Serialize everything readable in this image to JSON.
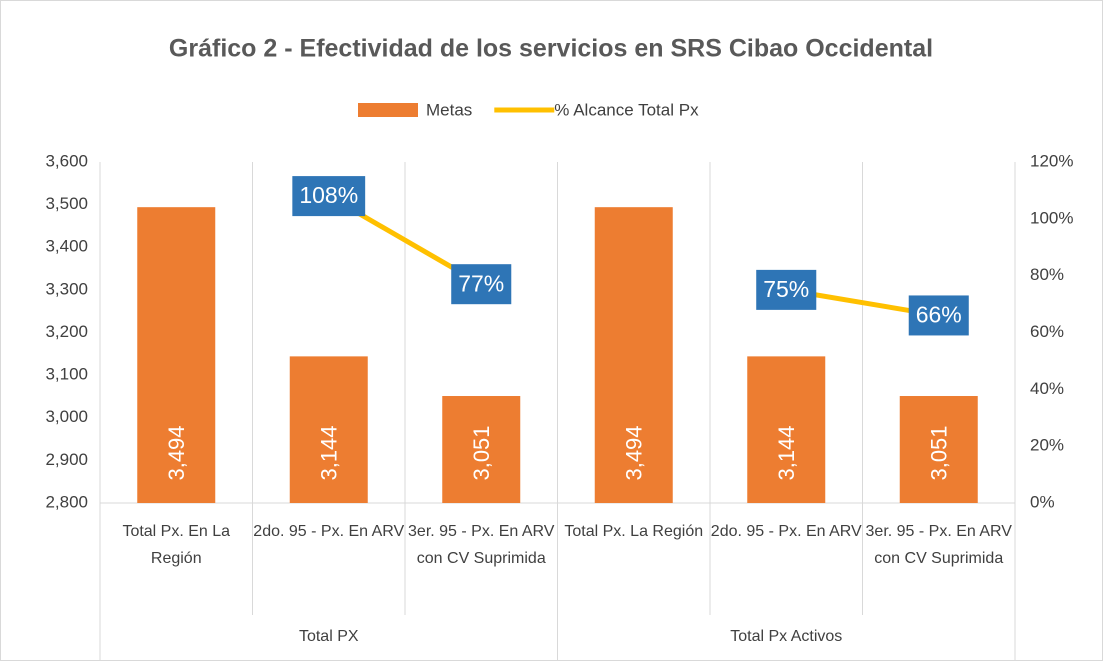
{
  "chart_data": {
    "type": "combo",
    "title": "Gráfico 2 - Efectividad de los servicios en SRS Cibao Occidental",
    "categories": [
      "Total Px. En La Región",
      "2do. 95 - Px. En ARV",
      "3er. 95 - Px. En ARV con CV Suprimida",
      "Total Px. La Región",
      "2do. 95 - Px. En ARV",
      "3er. 95 - Px. En ARV con CV Suprimida"
    ],
    "groups": [
      "Total PX",
      "Total Px Activos"
    ],
    "series": [
      {
        "name": "Metas",
        "type": "bar",
        "color": "#ed7d31",
        "values": [
          3494,
          3144,
          3051,
          3494,
          3144,
          3051
        ],
        "value_labels": [
          "3,494",
          "3,144",
          "3,051",
          "3,494",
          "3,144",
          "3,051"
        ]
      },
      {
        "name": "% Alcance Total Px",
        "type": "line",
        "axis": "y2",
        "color": "#ffc000",
        "label_color": "#2e75b6",
        "values": [
          null,
          108,
          77,
          null,
          75,
          66
        ],
        "value_labels": [
          null,
          "108%",
          "77%",
          null,
          "75%",
          "66%"
        ]
      }
    ],
    "ylim": [
      2800,
      3600
    ],
    "yticks": [
      {
        "value": 2800,
        "label": "2,800"
      },
      {
        "value": 2900,
        "label": "2,900"
      },
      {
        "value": 3000,
        "label": "3,000"
      },
      {
        "value": 3100,
        "label": "3,100"
      },
      {
        "value": 3200,
        "label": "3,200"
      },
      {
        "value": 3300,
        "label": "3,300"
      },
      {
        "value": 3400,
        "label": "3,400"
      },
      {
        "value": 3500,
        "label": "3,500"
      },
      {
        "value": 3600,
        "label": "3,600"
      }
    ],
    "y2lim": [
      0,
      120
    ],
    "y2ticks": [
      {
        "value": 0,
        "label": "0%"
      },
      {
        "value": 20,
        "label": "20%"
      },
      {
        "value": 40,
        "label": "40%"
      },
      {
        "value": 60,
        "label": "60%"
      },
      {
        "value": 80,
        "label": "80%"
      },
      {
        "value": 100,
        "label": "100%"
      },
      {
        "value": 120,
        "label": "120%"
      }
    ],
    "legend": "top"
  }
}
